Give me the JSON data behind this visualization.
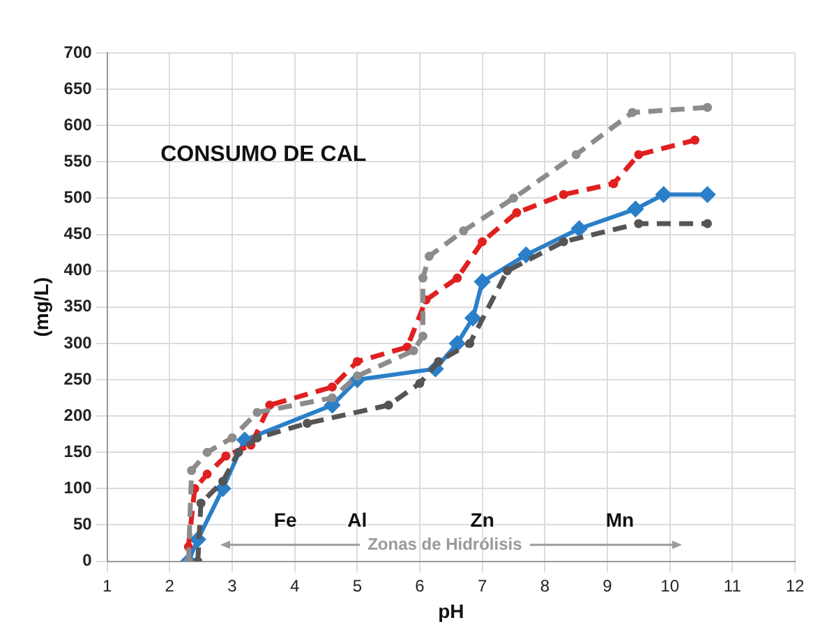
{
  "chart_data": {
    "type": "line",
    "xlabel": "pH",
    "ylabel": "(mg/L)",
    "annotations": [
      "CONSUMO DE CAL",
      "Fe",
      "Al",
      "Zn",
      "Mn",
      "Zonas de Hidrólisis"
    ],
    "xlim": [
      1,
      12
    ],
    "xticks": [
      1,
      2,
      3,
      4,
      5,
      6,
      7,
      8,
      9,
      10,
      11,
      12
    ],
    "ylim": [
      0,
      700
    ],
    "yticks": [
      0,
      50,
      100,
      150,
      200,
      250,
      300,
      350,
      400,
      450,
      500,
      550,
      600,
      650,
      700
    ],
    "grid": true,
    "legend": false,
    "series": [
      {
        "color": "#8c8c8c",
        "line_style": "dashed",
        "marker": "circle",
        "x": [
          2.3,
          2.35,
          2.6,
          3.0,
          3.4,
          4.6,
          5.0,
          5.9,
          6.05,
          6.05,
          6.15,
          6.7,
          7.5,
          8.5,
          9.4,
          10.6
        ],
        "values": [
          0,
          125,
          150,
          170,
          205,
          225,
          255,
          290,
          310,
          390,
          420,
          455,
          500,
          560,
          618,
          625
        ]
      },
      {
        "color": "#555555",
        "line_style": "dashed",
        "marker": "circle",
        "x": [
          2.45,
          2.5,
          2.85,
          3.1,
          3.4,
          4.2,
          5.5,
          6.0,
          6.3,
          6.8,
          7.4,
          8.3,
          9.5,
          10.6
        ],
        "values": [
          0,
          80,
          110,
          150,
          170,
          190,
          215,
          245,
          275,
          300,
          400,
          440,
          465,
          465
        ]
      },
      {
        "color": "#e02020",
        "line_style": "dashed",
        "marker": "circle",
        "x": [
          2.3,
          2.4,
          2.6,
          2.9,
          3.3,
          3.6,
          4.6,
          5.0,
          5.8,
          6.1,
          6.6,
          7.0,
          7.55,
          8.3,
          9.1,
          9.5,
          10.4
        ],
        "values": [
          20,
          100,
          120,
          145,
          160,
          215,
          240,
          275,
          295,
          360,
          390,
          440,
          480,
          505,
          520,
          560,
          580
        ]
      },
      {
        "color": "#2a7fc8",
        "line_style": "solid",
        "marker": "diamond",
        "x": [
          2.3,
          2.45,
          2.85,
          3.2,
          4.6,
          5.0,
          6.25,
          6.6,
          6.85,
          7.0,
          7.7,
          8.55,
          9.45,
          9.9,
          10.6
        ],
        "values": [
          0,
          30,
          100,
          167,
          215,
          250,
          265,
          300,
          335,
          385,
          422,
          458,
          485,
          505,
          505
        ]
      }
    ]
  }
}
